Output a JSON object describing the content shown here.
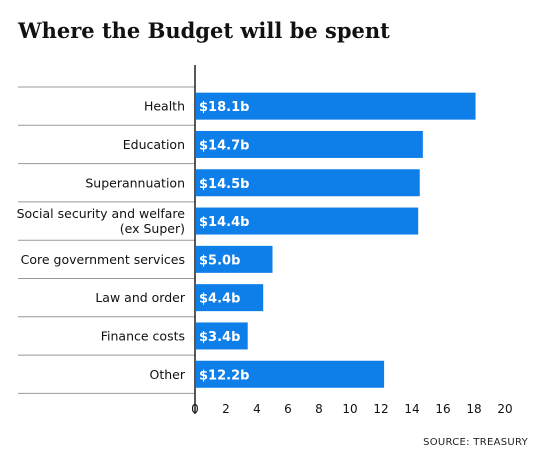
{
  "chart_data": {
    "type": "bar",
    "orientation": "horizontal",
    "title": "Where the Budget will be spent",
    "source": "SOURCE: TREASURY",
    "categories": [
      "Health",
      "Education",
      "Superannuation",
      "Social security and welfare\n(ex Super)",
      "Core government services",
      "Law and order",
      "Finance costs",
      "Other"
    ],
    "values": [
      18.1,
      14.7,
      14.5,
      14.4,
      5.0,
      4.4,
      3.4,
      12.2
    ],
    "data_labels": [
      "$18.1b",
      "$14.7b",
      "$14.5b",
      "$14.4b",
      "$5.0b",
      "$4.4b",
      "$3.4b",
      "$12.2b"
    ],
    "x_ticks": [
      0,
      2,
      4,
      6,
      8,
      10,
      12,
      14,
      16,
      18,
      20
    ],
    "xlim": [
      0,
      20
    ],
    "bar_color": "#0e7ee8",
    "label_color": "#ffffff",
    "grid": false,
    "legend": "none"
  }
}
